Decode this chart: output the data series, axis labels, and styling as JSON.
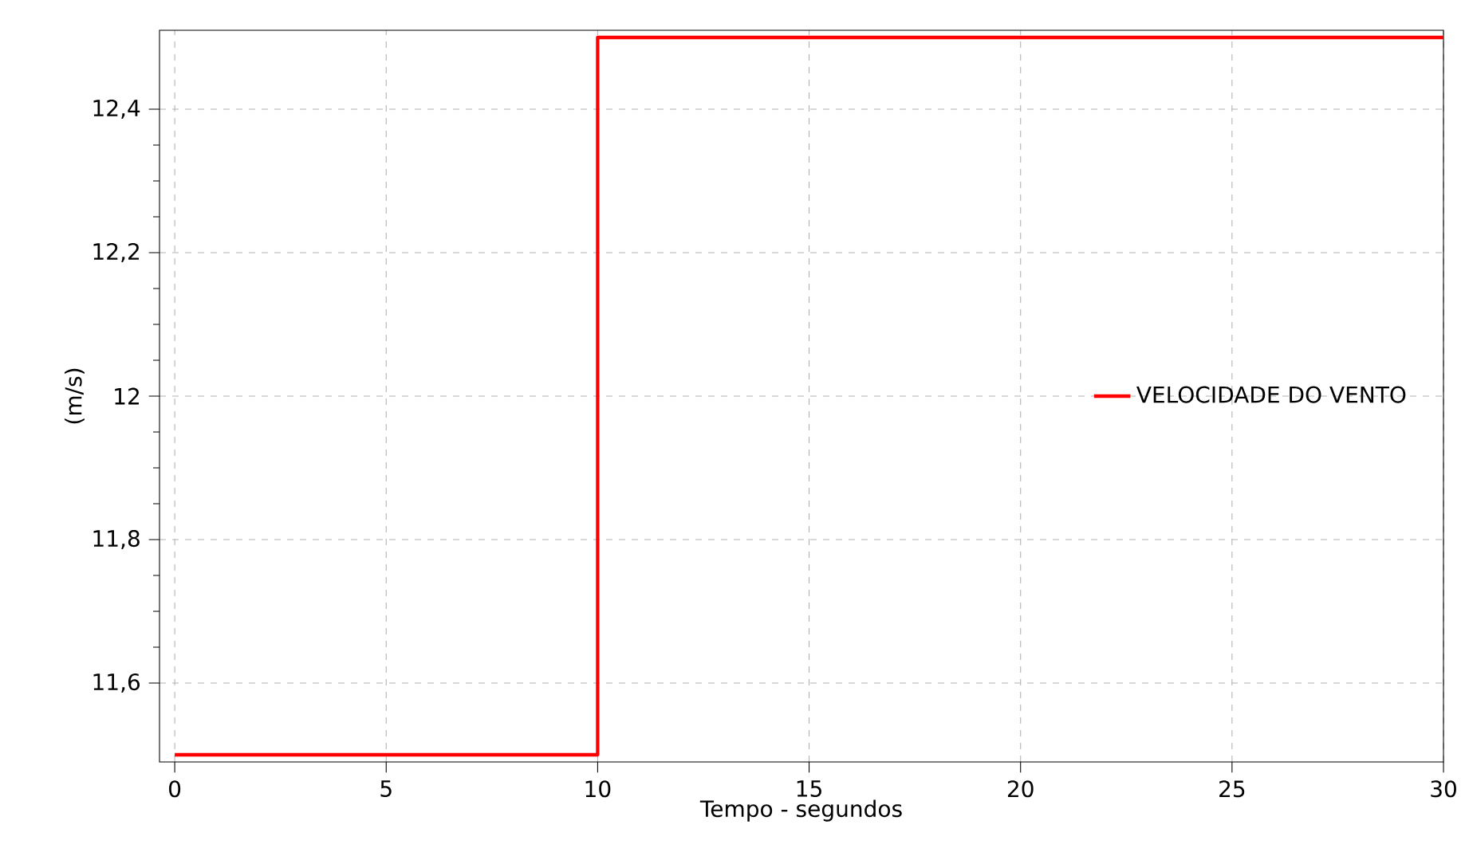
{
  "chart_data": {
    "type": "step",
    "xlabel": "Tempo - segundos",
    "ylabel": "(m/s)",
    "x": [
      0,
      10,
      30
    ],
    "series": [
      {
        "name": "VELOCIDADE DO VENTO",
        "color": "#ff0000",
        "values": [
          11.5,
          12.5,
          12.5
        ]
      }
    ],
    "xlim": [
      -0.36,
      30
    ],
    "ylim": [
      11.49,
      12.51
    ],
    "xticks": [
      0,
      5,
      10,
      15,
      20,
      25,
      30
    ],
    "yticks": [
      {
        "value": 11.6,
        "label": "11,6"
      },
      {
        "value": 11.8,
        "label": "11,8"
      },
      12,
      {
        "value": 12.2,
        "label": "12,2"
      },
      {
        "value": 12.4,
        "label": "12,4"
      }
    ],
    "grid": true,
    "legend": "right",
    "line_style": "solid"
  }
}
